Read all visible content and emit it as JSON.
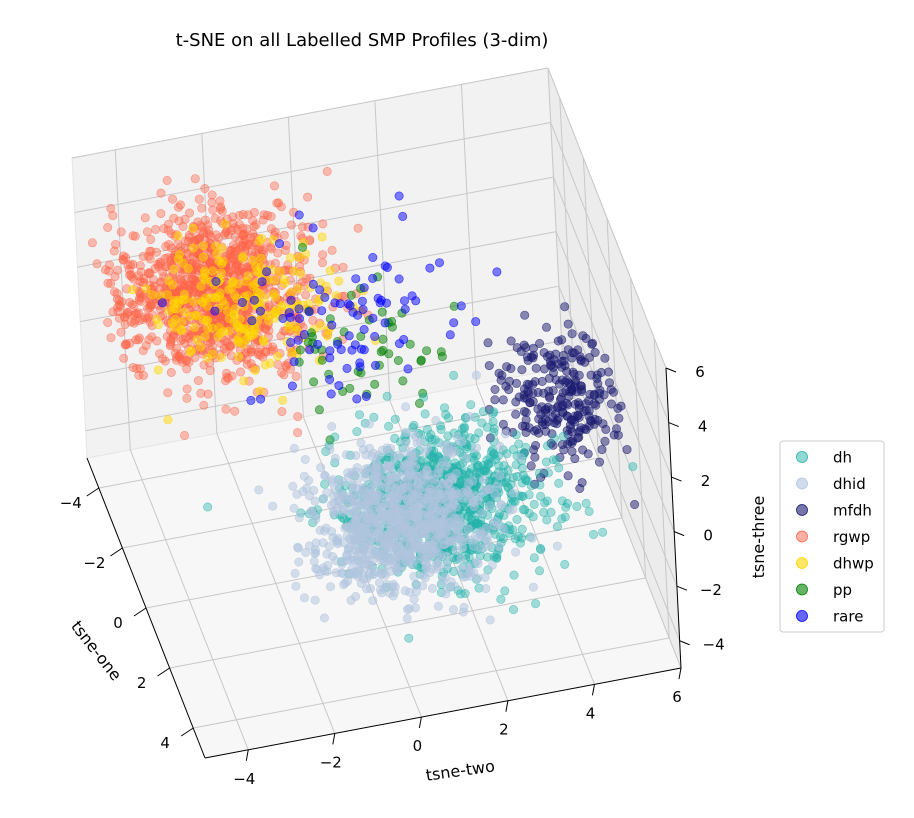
{
  "chart_data": {
    "type": "scatter",
    "projection": "3d",
    "title": "t-SNE on all Labelled SMP Profiles (3-dim)",
    "xlabel": "tsne-one",
    "ylabel": "tsne-two",
    "zlabel": "tsne-three",
    "xlim": [
      -5,
      5
    ],
    "ylim": [
      -5,
      6
    ],
    "zlim": [
      -5,
      6
    ],
    "xticks": [
      "−4",
      "−2",
      "0",
      "2",
      "4"
    ],
    "yticks": [
      "−4",
      "−2",
      "0",
      "2",
      "4",
      "6"
    ],
    "zticks": [
      "−4",
      "−2",
      "0",
      "2",
      "4",
      "6"
    ],
    "grid": true,
    "legend_position": "right",
    "series": [
      {
        "name": "dh",
        "color": "#20b2aa",
        "alpha": 0.4,
        "cluster": {
          "center": [
            1.8,
            1.5,
            -1.0
          ],
          "spread": [
            1.6,
            2.0,
            1.8
          ]
        }
      },
      {
        "name": "dhid",
        "color": "#b0c4de",
        "alpha": 0.5,
        "cluster": {
          "center": [
            1.8,
            0.5,
            -1.5
          ],
          "spread": [
            1.6,
            1.8,
            1.7
          ]
        }
      },
      {
        "name": "mfdh",
        "color": "#191970",
        "alpha": 0.5,
        "cluster": {
          "center": [
            0.5,
            4.5,
            0.5
          ],
          "spread": [
            1.5,
            1.2,
            1.5
          ]
        }
      },
      {
        "name": "rgwp",
        "color": "#ff6347",
        "alpha": 0.4,
        "cluster": {
          "center": [
            -2.5,
            -2.5,
            3.0
          ],
          "spread": [
            1.8,
            2.0,
            1.7
          ]
        }
      },
      {
        "name": "dhwp",
        "color": "#ffd700",
        "alpha": 0.5,
        "cluster": {
          "center": [
            -1.5,
            -2.0,
            3.5
          ],
          "spread": [
            1.6,
            1.8,
            1.3
          ]
        }
      },
      {
        "name": "pp",
        "color": "#008000",
        "alpha": 0.5,
        "cluster": {
          "center": [
            -0.5,
            0.5,
            2.5
          ],
          "spread": [
            1.5,
            1.5,
            1.5
          ]
        }
      },
      {
        "name": "rare",
        "color": "#0000ff",
        "alpha": 0.5,
        "cluster": {
          "center": [
            -1.0,
            0.0,
            3.0
          ],
          "spread": [
            2.0,
            2.5,
            1.5
          ]
        }
      }
    ]
  }
}
